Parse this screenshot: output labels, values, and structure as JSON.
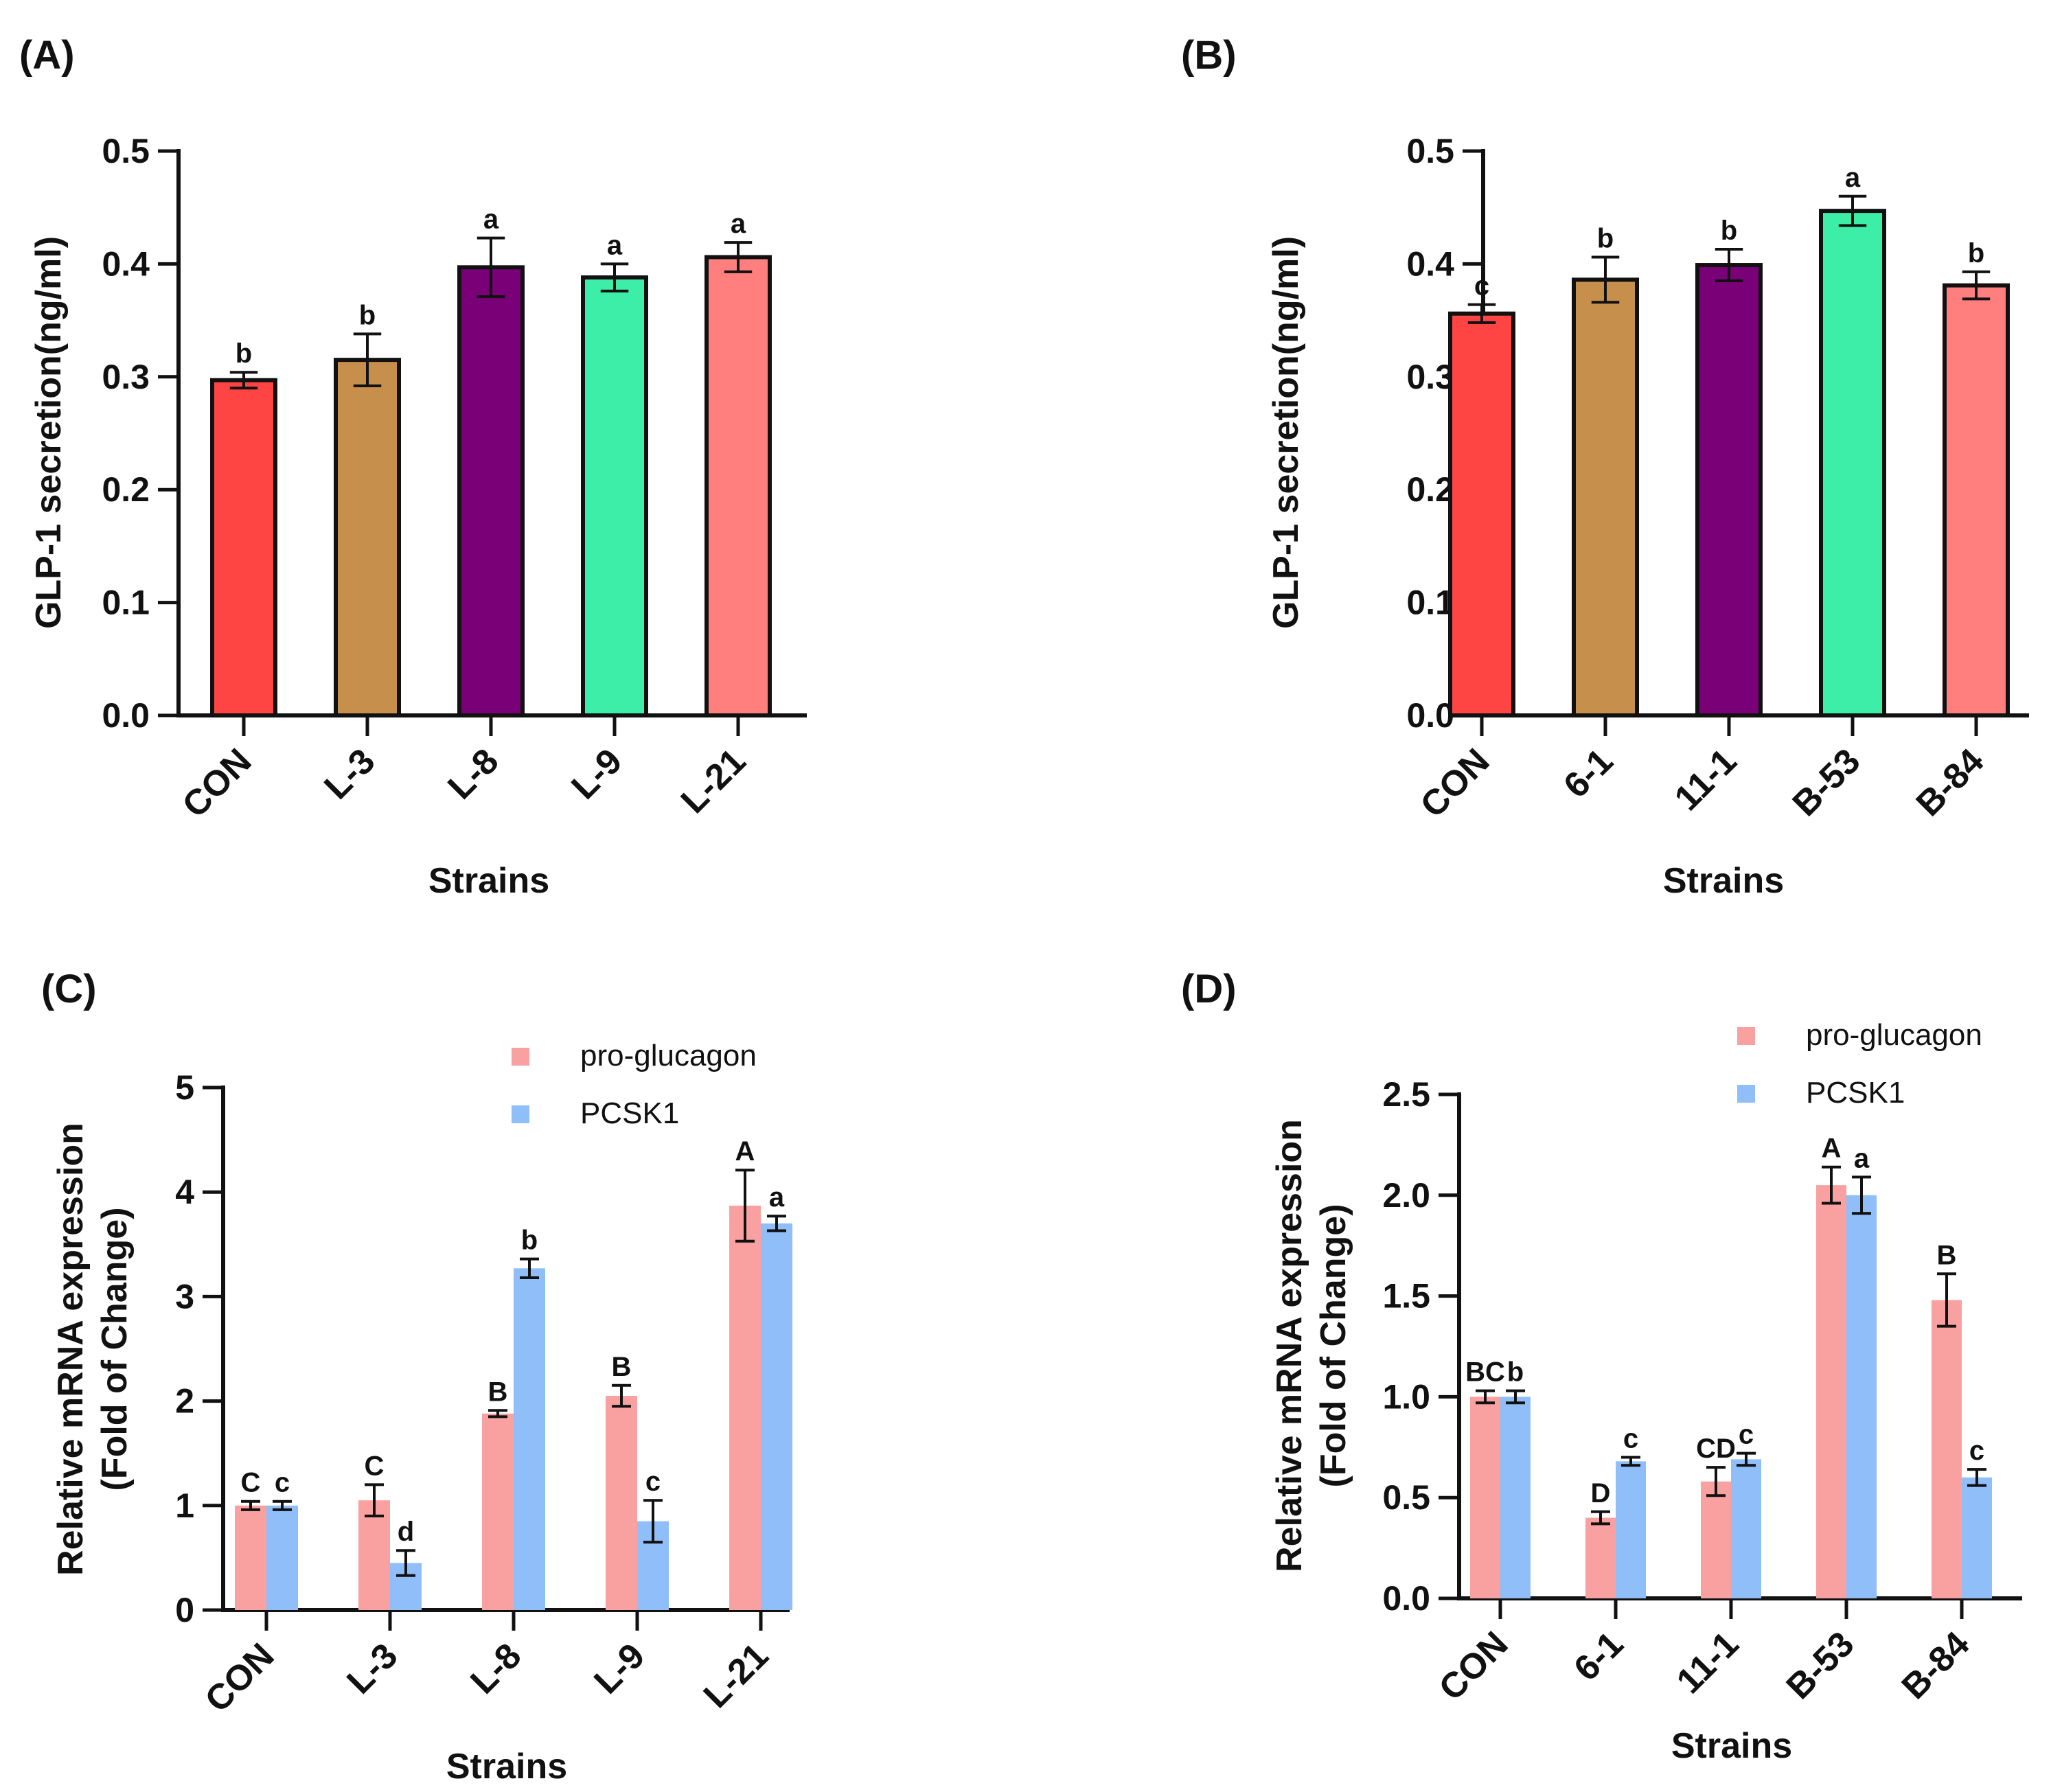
{
  "chart_data": [
    {
      "panel": "(A)",
      "type": "bar",
      "title": "",
      "xlabel": "Strains",
      "ylabel": "GLP-1 secretion(ng/ml)",
      "ylim": [
        0,
        0.5
      ],
      "yticks": [
        "0.0",
        "0.1",
        "0.2",
        "0.3",
        "0.4",
        "0.5"
      ],
      "categories": [
        "CON",
        "L-3",
        "L-8",
        "L-9",
        "L-21"
      ],
      "values": [
        0.297,
        0.315,
        0.397,
        0.388,
        0.406
      ],
      "errors": [
        0.007,
        0.023,
        0.026,
        0.012,
        0.013
      ],
      "colors": [
        "#ff4444",
        "#c68f4c",
        "#7a0077",
        "#3ceea8",
        "#ff7f7f"
      ],
      "significance": [
        "b",
        "b",
        "a",
        "a",
        "a"
      ],
      "grid": false
    },
    {
      "panel": "(B)",
      "type": "bar",
      "title": "",
      "xlabel": "Strains",
      "ylabel": "GLP-1 secretion(ng/ml)",
      "ylim": [
        0,
        0.5
      ],
      "yticks": [
        "0.0",
        "0.1",
        "0.2",
        "0.3",
        "0.4",
        "0.5"
      ],
      "categories": [
        "CON",
        "6-1",
        "11-1",
        "B-53",
        "B-84"
      ],
      "values": [
        0.356,
        0.386,
        0.399,
        0.447,
        0.381
      ],
      "errors": [
        0.008,
        0.02,
        0.014,
        0.013,
        0.012
      ],
      "colors": [
        "#ff4444",
        "#c68f4c",
        "#7a0077",
        "#3ceea8",
        "#ff7f7f"
      ],
      "significance": [
        "c",
        "b",
        "b",
        "a",
        "b"
      ],
      "grid": false
    },
    {
      "panel": "(C)",
      "type": "bar",
      "title": "",
      "xlabel": "Strains",
      "ylabel": [
        "Relative mRNA expression",
        "(Fold of Change)"
      ],
      "ylim": [
        0,
        5
      ],
      "yticks": [
        "0",
        "1",
        "2",
        "3",
        "4",
        "5"
      ],
      "categories": [
        "CON",
        "L-3",
        "L-8",
        "L-9",
        "L-21"
      ],
      "legend_position": "top-right",
      "series": [
        {
          "name": "pro-glucagon",
          "color": "#f9a1a1",
          "values": [
            1.0,
            1.05,
            1.88,
            2.05,
            3.87
          ],
          "errors": [
            0.04,
            0.15,
            0.03,
            0.1,
            0.34
          ],
          "significance": [
            "C",
            "C",
            "B",
            "B",
            "A"
          ]
        },
        {
          "name": "PCSK1",
          "color": "#8fbef9",
          "values": [
            1.0,
            0.45,
            3.27,
            0.85,
            3.7
          ],
          "errors": [
            0.04,
            0.12,
            0.09,
            0.2,
            0.07
          ],
          "significance": [
            "c",
            "d",
            "b",
            "c",
            "a"
          ]
        }
      ],
      "grid": false
    },
    {
      "panel": "(D)",
      "type": "bar",
      "title": "",
      "xlabel": "Strains",
      "ylabel": [
        "Relative mRNA expression",
        "(Fold of Change)"
      ],
      "ylim": [
        0,
        2.5
      ],
      "yticks": [
        "0.0",
        "0.5",
        "1.0",
        "1.5",
        "2.0",
        "2.5"
      ],
      "categories": [
        "CON",
        "6-1",
        "11-1",
        "B-53",
        "B-84"
      ],
      "legend_position": "top-right",
      "series": [
        {
          "name": "pro-glucagon",
          "color": "#f9a1a1",
          "values": [
            1.0,
            0.4,
            0.58,
            2.05,
            1.48
          ],
          "errors": [
            0.03,
            0.03,
            0.07,
            0.09,
            0.13
          ],
          "significance": [
            "BC",
            "D",
            "CD",
            "A",
            "B"
          ]
        },
        {
          "name": "PCSK1",
          "color": "#8fbef9",
          "values": [
            1.0,
            0.68,
            0.69,
            2.0,
            0.6
          ],
          "errors": [
            0.03,
            0.02,
            0.03,
            0.09,
            0.04
          ],
          "significance": [
            "b",
            "c",
            "c",
            "a",
            "c"
          ]
        }
      ],
      "grid": false
    }
  ]
}
